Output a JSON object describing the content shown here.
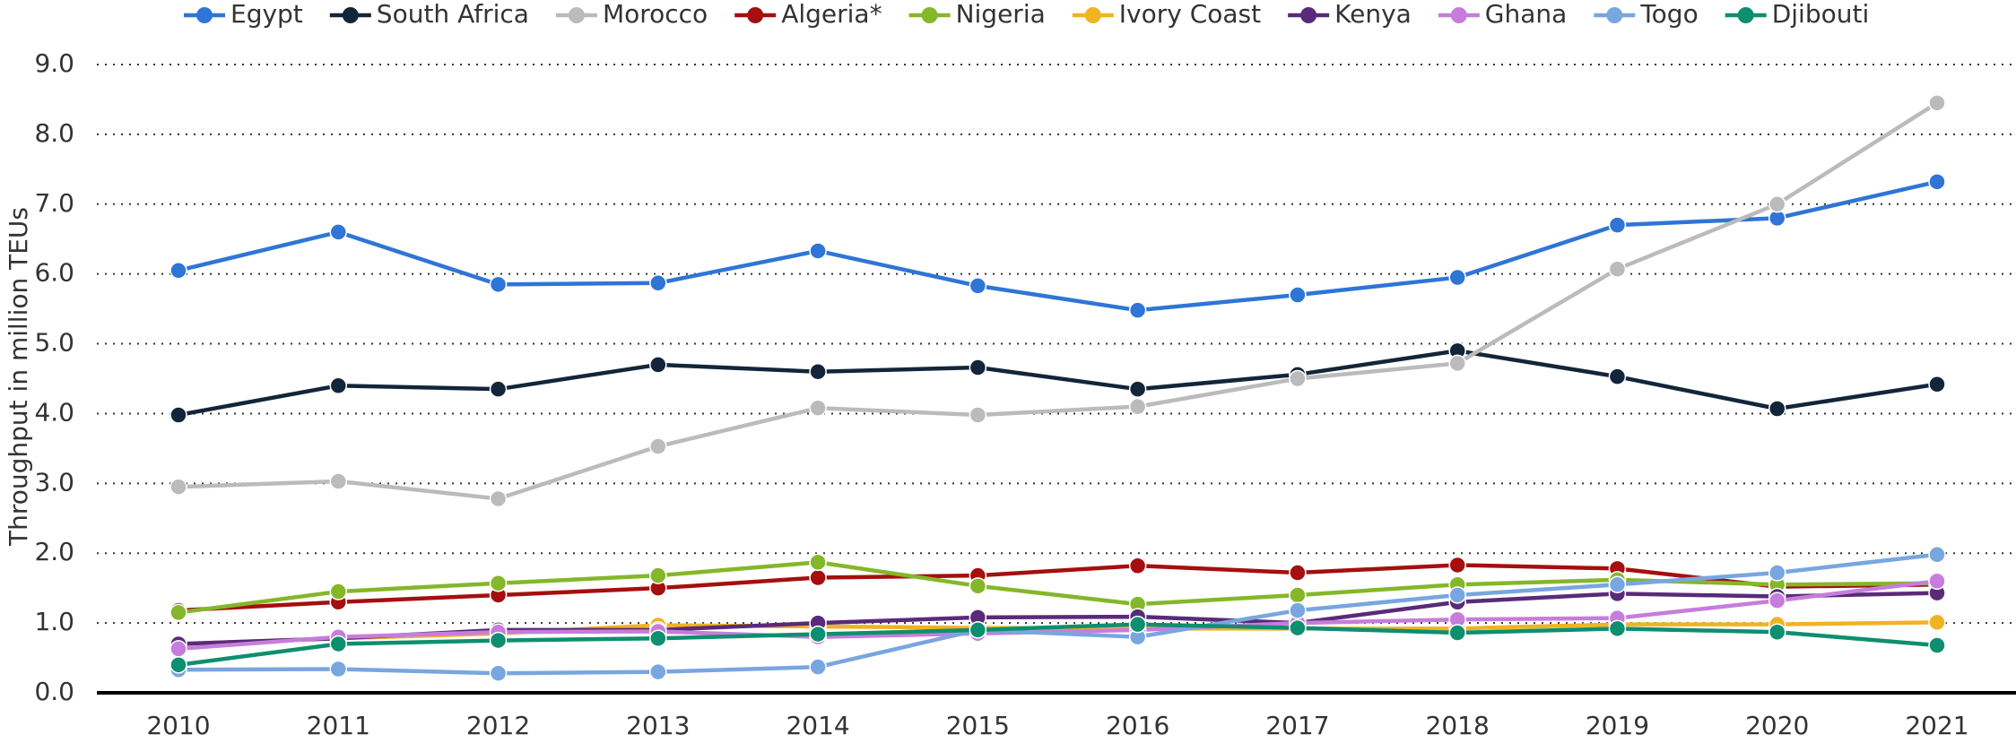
{
  "chart_data": {
    "type": "line",
    "y_label": "Throughput in million TEUs",
    "categories": [
      "2010",
      "2011",
      "2012",
      "2013",
      "2014",
      "2015",
      "2016",
      "2017",
      "2018",
      "2019",
      "2020",
      "2021"
    ],
    "ylim": [
      0,
      9
    ],
    "yticks": [
      {
        "value": 0,
        "label": "0.0"
      },
      {
        "value": 1,
        "label": "1.0"
      },
      {
        "value": 2,
        "label": "2.0"
      },
      {
        "value": 3,
        "label": "3.0"
      },
      {
        "value": 4,
        "label": "4.0"
      },
      {
        "value": 5,
        "label": "5.0"
      },
      {
        "value": 6,
        "label": "6.0"
      },
      {
        "value": 7,
        "label": "7.0"
      },
      {
        "value": 8,
        "label": "8.0"
      },
      {
        "value": 9,
        "label": "9.0"
      }
    ],
    "grid": true,
    "legend": "top",
    "series": [
      {
        "name": "Egypt",
        "color": "#2f75d6",
        "values": [
          6.05,
          6.6,
          5.85,
          5.87,
          6.33,
          5.83,
          5.48,
          5.7,
          5.95,
          6.7,
          6.8,
          7.32
        ]
      },
      {
        "name": "South Africa",
        "color": "#13253a",
        "values": [
          3.98,
          4.4,
          4.35,
          4.7,
          4.6,
          4.66,
          4.35,
          4.56,
          4.9,
          4.53,
          4.07,
          4.42
        ]
      },
      {
        "name": "Morocco",
        "color": "#bbbbbb",
        "values": [
          2.95,
          3.03,
          2.78,
          3.53,
          4.08,
          3.98,
          4.1,
          4.5,
          4.72,
          6.07,
          7.0,
          8.45
        ]
      },
      {
        "name": "Algeria*",
        "color": "#a50f0f",
        "values": [
          1.18,
          1.3,
          1.4,
          1.5,
          1.65,
          1.68,
          1.82,
          1.72,
          1.83,
          1.78,
          1.52,
          1.55
        ]
      },
      {
        "name": "Nigeria",
        "color": "#84b729",
        "values": [
          1.15,
          1.45,
          1.57,
          1.68,
          1.87,
          1.53,
          1.27,
          1.4,
          1.55,
          1.62,
          1.55,
          1.57
        ]
      },
      {
        "name": "Ivory Coast",
        "color": "#f0b323",
        "values": [
          0.7,
          0.78,
          0.85,
          0.97,
          0.95,
          0.93,
          0.92,
          0.92,
          0.92,
          0.98,
          0.98,
          1.01
        ]
      },
      {
        "name": "Kenya",
        "color": "#5a2a7a",
        "values": [
          0.7,
          0.78,
          0.9,
          0.9,
          1.0,
          1.08,
          1.09,
          1.0,
          1.3,
          1.42,
          1.38,
          1.43
        ]
      },
      {
        "name": "Ghana",
        "color": "#c77ddb",
        "values": [
          0.63,
          0.8,
          0.87,
          0.88,
          0.8,
          0.85,
          0.9,
          1.0,
          1.05,
          1.07,
          1.32,
          1.6
        ]
      },
      {
        "name": "Togo",
        "color": "#78a6e0",
        "values": [
          0.33,
          0.34,
          0.28,
          0.3,
          0.37,
          0.9,
          0.8,
          1.18,
          1.4,
          1.55,
          1.72,
          1.98
        ]
      },
      {
        "name": "Djibouti",
        "color": "#0e8f6f",
        "values": [
          0.4,
          0.7,
          0.75,
          0.78,
          0.84,
          0.9,
          0.98,
          0.93,
          0.86,
          0.92,
          0.87,
          0.68
        ]
      }
    ]
  }
}
